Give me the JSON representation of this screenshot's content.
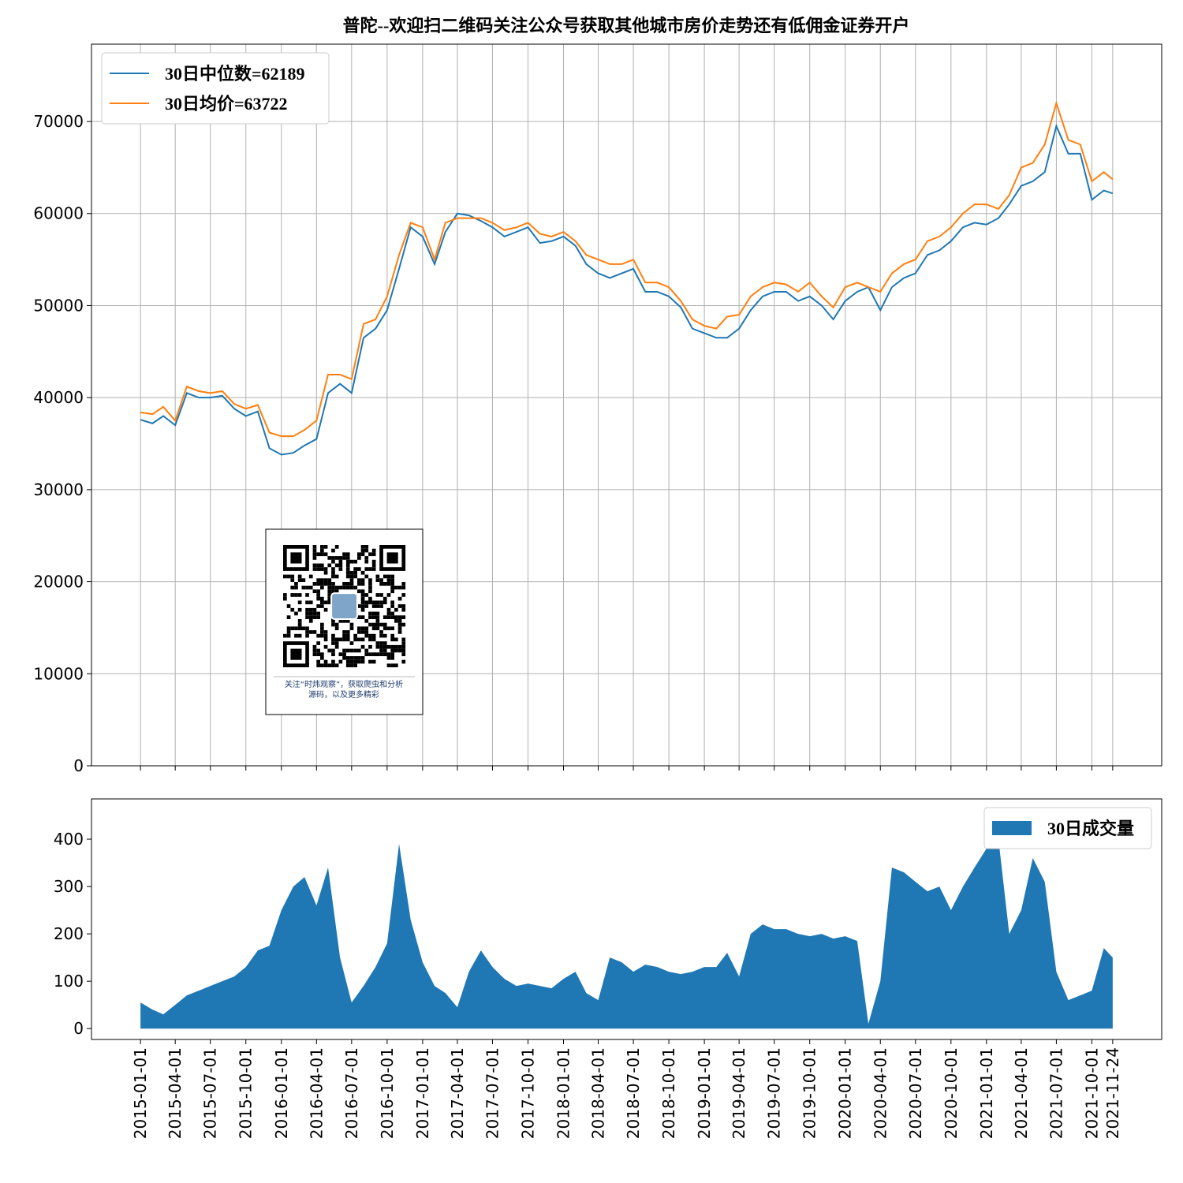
{
  "chart_data": [
    {
      "type": "line",
      "title": "普陀--欢迎扫二维码关注公众号获取其他城市房价走势还有低佣金证券开户",
      "grid": true,
      "legend": "upper left",
      "x": [
        "2015-01-01",
        "2015-02-01",
        "2015-03-01",
        "2015-04-01",
        "2015-05-01",
        "2015-06-01",
        "2015-07-01",
        "2015-08-01",
        "2015-09-01",
        "2015-10-01",
        "2015-11-01",
        "2015-12-01",
        "2016-01-01",
        "2016-02-01",
        "2016-03-01",
        "2016-04-01",
        "2016-05-01",
        "2016-06-01",
        "2016-07-01",
        "2016-08-01",
        "2016-09-01",
        "2016-10-01",
        "2016-11-01",
        "2016-12-01",
        "2017-01-01",
        "2017-02-01",
        "2017-03-01",
        "2017-04-01",
        "2017-05-01",
        "2017-06-01",
        "2017-07-01",
        "2017-08-01",
        "2017-09-01",
        "2017-10-01",
        "2017-11-01",
        "2017-12-01",
        "2018-01-01",
        "2018-02-01",
        "2018-03-01",
        "2018-04-01",
        "2018-05-01",
        "2018-06-01",
        "2018-07-01",
        "2018-08-01",
        "2018-09-01",
        "2018-10-01",
        "2018-11-01",
        "2018-12-01",
        "2019-01-01",
        "2019-02-01",
        "2019-03-01",
        "2019-04-01",
        "2019-05-01",
        "2019-06-01",
        "2019-07-01",
        "2019-08-01",
        "2019-09-01",
        "2019-10-01",
        "2019-11-01",
        "2019-12-01",
        "2020-01-01",
        "2020-02-01",
        "2020-03-01",
        "2020-04-01",
        "2020-05-01",
        "2020-06-01",
        "2020-07-01",
        "2020-08-01",
        "2020-09-01",
        "2020-10-01",
        "2020-11-01",
        "2020-12-01",
        "2021-01-01",
        "2021-02-01",
        "2021-03-01",
        "2021-04-01",
        "2021-05-01",
        "2021-06-01",
        "2021-07-01",
        "2021-08-01",
        "2021-09-01",
        "2021-10-01",
        "2021-11-01",
        "2021-11-24"
      ],
      "series": [
        {
          "name": "30日中位数=62189",
          "color": "#1f77b4",
          "values": [
            37600,
            37200,
            38000,
            37000,
            40500,
            40000,
            40000,
            40200,
            38800,
            38000,
            38500,
            34500,
            33800,
            34000,
            34800,
            35500,
            40500,
            41500,
            40500,
            46500,
            47500,
            49500,
            54000,
            58500,
            57500,
            54500,
            58000,
            60000,
            59800,
            59200,
            58500,
            57500,
            58000,
            58500,
            56800,
            57000,
            57500,
            56500,
            54500,
            53500,
            53000,
            53500,
            54000,
            51500,
            51500,
            51000,
            49800,
            47500,
            47000,
            46500,
            46500,
            47500,
            49500,
            51000,
            51500,
            51500,
            50500,
            51000,
            50000,
            48500,
            50500,
            51500,
            52000,
            49500,
            52000,
            53000,
            53500,
            55500,
            56000,
            57000,
            58500,
            59000,
            58800,
            59500,
            61000,
            63000,
            63500,
            64500,
            69500,
            66500,
            66500,
            61500,
            62500,
            62189
          ]
        },
        {
          "name": "30日均价=63722",
          "color": "#ff7f0e",
          "values": [
            38400,
            38200,
            39000,
            37500,
            41200,
            40700,
            40500,
            40700,
            39300,
            38800,
            39200,
            36200,
            35800,
            35800,
            36500,
            37500,
            42500,
            42500,
            42000,
            48000,
            48500,
            51000,
            55500,
            59000,
            58500,
            55000,
            59000,
            59500,
            59500,
            59500,
            59000,
            58200,
            58500,
            59000,
            57800,
            57500,
            58000,
            57000,
            55500,
            55000,
            54500,
            54500,
            55000,
            52500,
            52500,
            52000,
            50500,
            48500,
            47800,
            47500,
            48800,
            49000,
            51000,
            52000,
            52500,
            52300,
            51500,
            52500,
            51000,
            49800,
            52000,
            52500,
            52000,
            51500,
            53500,
            54500,
            55000,
            57000,
            57500,
            58500,
            60000,
            61000,
            61000,
            60500,
            62000,
            65000,
            65500,
            67500,
            72000,
            68000,
            67500,
            63500,
            64500,
            63722
          ]
        }
      ],
      "xlim": [
        "2014-08-27",
        "2022-03-31"
      ],
      "xticks": [
        "2015-01-01",
        "2015-04-01",
        "2015-07-01",
        "2015-10-01",
        "2016-01-01",
        "2016-04-01",
        "2016-07-01",
        "2016-10-01",
        "2017-01-01",
        "2017-04-01",
        "2017-07-01",
        "2017-10-01",
        "2018-01-01",
        "2018-04-01",
        "2018-07-01",
        "2018-10-01",
        "2019-01-01",
        "2019-04-01",
        "2019-07-01",
        "2019-10-01",
        "2020-01-01",
        "2020-04-01",
        "2020-07-01",
        "2020-10-01",
        "2021-01-01",
        "2021-04-01",
        "2021-07-01",
        "2021-10-01",
        "2021-11-24"
      ],
      "ylim": [
        0,
        78400
      ],
      "yticks": [
        0,
        10000,
        20000,
        30000,
        40000,
        50000,
        60000,
        70000
      ]
    },
    {
      "type": "area",
      "legend": "upper right",
      "x": [
        "2015-01-01",
        "2015-02-01",
        "2015-03-01",
        "2015-04-01",
        "2015-05-01",
        "2015-06-01",
        "2015-07-01",
        "2015-08-01",
        "2015-09-01",
        "2015-10-01",
        "2015-11-01",
        "2015-12-01",
        "2016-01-01",
        "2016-02-01",
        "2016-03-01",
        "2016-04-01",
        "2016-05-01",
        "2016-06-01",
        "2016-07-01",
        "2016-08-01",
        "2016-09-01",
        "2016-10-01",
        "2016-11-01",
        "2016-12-01",
        "2017-01-01",
        "2017-02-01",
        "2017-03-01",
        "2017-04-01",
        "2017-05-01",
        "2017-06-01",
        "2017-07-01",
        "2017-08-01",
        "2017-09-01",
        "2017-10-01",
        "2017-11-01",
        "2017-12-01",
        "2018-01-01",
        "2018-02-01",
        "2018-03-01",
        "2018-04-01",
        "2018-05-01",
        "2018-06-01",
        "2018-07-01",
        "2018-08-01",
        "2018-09-01",
        "2018-10-01",
        "2018-11-01",
        "2018-12-01",
        "2019-01-01",
        "2019-02-01",
        "2019-03-01",
        "2019-04-01",
        "2019-05-01",
        "2019-06-01",
        "2019-07-01",
        "2019-08-01",
        "2019-09-01",
        "2019-10-01",
        "2019-11-01",
        "2019-12-01",
        "2020-01-01",
        "2020-02-01",
        "2020-03-01",
        "2020-04-01",
        "2020-05-01",
        "2020-06-01",
        "2020-07-01",
        "2020-08-01",
        "2020-09-01",
        "2020-10-01",
        "2020-11-01",
        "2020-12-01",
        "2021-01-01",
        "2021-02-01",
        "2021-03-01",
        "2021-04-01",
        "2021-05-01",
        "2021-06-01",
        "2021-07-01",
        "2021-08-01",
        "2021-09-01",
        "2021-10-01",
        "2021-11-01",
        "2021-11-24"
      ],
      "series": [
        {
          "name": "30日成交量",
          "color": "#1f77b4",
          "values": [
            55,
            40,
            30,
            50,
            70,
            80,
            90,
            100,
            110,
            130,
            165,
            175,
            250,
            300,
            320,
            260,
            340,
            150,
            55,
            90,
            130,
            180,
            390,
            230,
            140,
            90,
            75,
            45,
            120,
            165,
            130,
            105,
            90,
            95,
            90,
            85,
            105,
            120,
            75,
            60,
            150,
            140,
            120,
            135,
            130,
            120,
            115,
            120,
            130,
            130,
            160,
            110,
            200,
            220,
            210,
            210,
            200,
            195,
            200,
            190,
            195,
            185,
            10,
            100,
            340,
            330,
            310,
            290,
            300,
            250,
            300,
            340,
            380,
            400,
            200,
            250,
            360,
            310,
            120,
            60,
            70,
            80,
            170,
            150
          ]
        }
      ],
      "xlim": [
        "2014-08-27",
        "2022-03-31"
      ],
      "xticks": [
        "2015-01-01",
        "2015-04-01",
        "2015-07-01",
        "2015-10-01",
        "2016-01-01",
        "2016-04-01",
        "2016-07-01",
        "2016-10-01",
        "2017-01-01",
        "2017-04-01",
        "2017-07-01",
        "2017-10-01",
        "2018-01-01",
        "2018-04-01",
        "2018-07-01",
        "2018-10-01",
        "2019-01-01",
        "2019-04-01",
        "2019-07-01",
        "2019-10-01",
        "2020-01-01",
        "2020-04-01",
        "2020-07-01",
        "2020-10-01",
        "2021-01-01",
        "2021-04-01",
        "2021-07-01",
        "2021-10-01",
        "2021-11-24"
      ],
      "ylim": [
        -23,
        485
      ],
      "yticks": [
        0,
        100,
        200,
        300,
        400
      ]
    }
  ],
  "qr": {
    "caption": [
      "关注“时炜观察”，获取爬虫和分析",
      "源码，以及更多精彩"
    ]
  }
}
